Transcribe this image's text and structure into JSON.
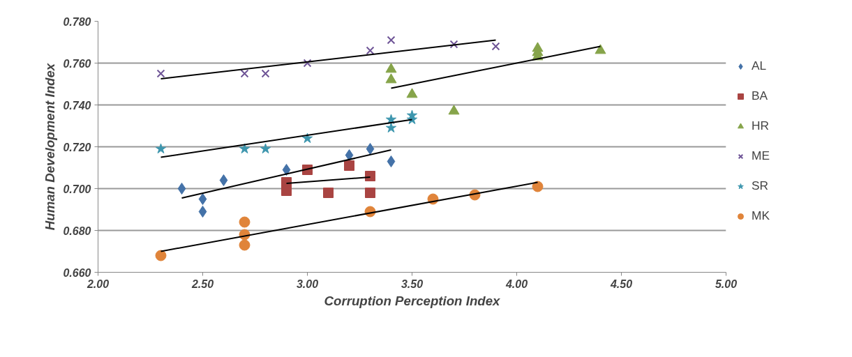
{
  "chart_data": {
    "type": "scatter",
    "xlabel": "Corruption Perception Index",
    "ylabel": "Human Development Index",
    "xlim": [
      2.0,
      5.0
    ],
    "ylim": [
      0.66,
      0.78
    ],
    "xticks": [
      {
        "value": 2.0,
        "label": "2.00"
      },
      {
        "value": 2.5,
        "label": "2.50"
      },
      {
        "value": 3.0,
        "label": "3.00"
      },
      {
        "value": 3.5,
        "label": "3.50"
      },
      {
        "value": 4.0,
        "label": "4.00"
      },
      {
        "value": 4.5,
        "label": "4.50"
      },
      {
        "value": 5.0,
        "label": "5.00"
      }
    ],
    "yticks": [
      {
        "value": 0.66,
        "label": "0.660"
      },
      {
        "value": 0.68,
        "label": "0.680"
      },
      {
        "value": 0.7,
        "label": "0.700"
      },
      {
        "value": 0.72,
        "label": "0.720"
      },
      {
        "value": 0.74,
        "label": "0.740"
      },
      {
        "value": 0.76,
        "label": "0.760"
      },
      {
        "value": 0.78,
        "label": "0.780"
      }
    ],
    "grid": "y",
    "legend": "right",
    "series": [
      {
        "name": "AL",
        "color": "#4472a8",
        "marker": "diamond",
        "x": [
          2.4,
          2.5,
          2.5,
          2.6,
          2.9,
          3.2,
          3.3,
          3.4
        ],
        "values": [
          0.7,
          0.695,
          0.689,
          0.704,
          0.709,
          0.716,
          0.719,
          0.713
        ]
      },
      {
        "name": "BA",
        "color": "#a94442",
        "marker": "square",
        "x": [
          2.9,
          2.9,
          3.0,
          3.1,
          3.2,
          3.3,
          3.3
        ],
        "values": [
          0.703,
          0.699,
          0.709,
          0.698,
          0.711,
          0.706,
          0.698
        ]
      },
      {
        "name": "HR",
        "color": "#86a44a",
        "marker": "triangle",
        "x": [
          3.4,
          3.4,
          3.5,
          3.7,
          4.1,
          4.1,
          4.1,
          4.4
        ],
        "values": [
          0.757,
          0.752,
          0.745,
          0.737,
          0.767,
          0.765,
          0.763,
          0.766
        ]
      },
      {
        "name": "ME",
        "color": "#6f5597",
        "marker": "cross",
        "x": [
          2.3,
          2.7,
          2.8,
          3.0,
          3.3,
          3.4,
          3.7,
          3.9
        ],
        "values": [
          0.755,
          0.755,
          0.755,
          0.76,
          0.766,
          0.771,
          0.769,
          0.768
        ]
      },
      {
        "name": "SR",
        "color": "#3d96ae",
        "marker": "star",
        "x": [
          2.3,
          2.7,
          2.8,
          3.0,
          3.4,
          3.4,
          3.5,
          3.5
        ],
        "values": [
          0.719,
          0.719,
          0.719,
          0.724,
          0.733,
          0.729,
          0.735,
          0.733
        ]
      },
      {
        "name": "MK",
        "color": "#e0843a",
        "marker": "circle",
        "x": [
          2.3,
          2.7,
          2.7,
          2.7,
          3.3,
          3.6,
          3.8,
          4.1
        ],
        "values": [
          0.668,
          0.684,
          0.678,
          0.673,
          0.689,
          0.695,
          0.697,
          0.701
        ]
      },
      {
        "type": "line",
        "color": "#000000",
        "marker": "none",
        "x": [
          2.4,
          3.4
        ],
        "values": [
          0.6955,
          0.7185
        ]
      },
      {
        "type": "line",
        "color": "#000000",
        "marker": "none",
        "x": [
          2.9,
          3.3
        ],
        "values": [
          0.7025,
          0.7055
        ]
      },
      {
        "type": "line",
        "color": "#000000",
        "marker": "none",
        "x": [
          3.4,
          4.4
        ],
        "values": [
          0.748,
          0.768
        ]
      },
      {
        "type": "line",
        "color": "#000000",
        "marker": "none",
        "x": [
          2.3,
          3.9
        ],
        "values": [
          0.7525,
          0.771
        ]
      },
      {
        "type": "line",
        "color": "#000000",
        "marker": "none",
        "x": [
          2.3,
          3.5
        ],
        "values": [
          0.715,
          0.733
        ]
      },
      {
        "type": "line",
        "color": "#000000",
        "marker": "none",
        "x": [
          2.3,
          4.1
        ],
        "values": [
          0.67,
          0.703
        ]
      }
    ]
  }
}
